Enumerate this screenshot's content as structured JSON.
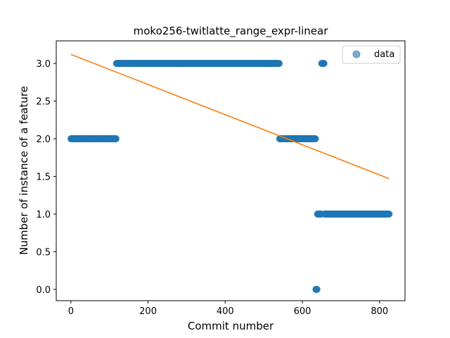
{
  "chart_data": {
    "type": "scatter",
    "title": "moko256-twitlatte_range_expr-linear",
    "xlabel": "Commit number",
    "ylabel": "Number of instance of a feature",
    "xlim": [
      -38,
      866
    ],
    "ylim": [
      -0.15,
      3.3
    ],
    "xticks": [
      0,
      200,
      400,
      600,
      800
    ],
    "yticks": [
      0.0,
      0.5,
      1.0,
      1.5,
      2.0,
      2.5,
      3.0
    ],
    "ytick_labels": [
      "0.0",
      "0.5",
      "1.0",
      "1.5",
      "2.0",
      "2.5",
      "3.0"
    ],
    "legend": {
      "position": "top-right",
      "entries": [
        "data"
      ]
    },
    "colors": {
      "data": "#1f77b4",
      "fit": "#ff7f0e"
    },
    "series": [
      {
        "name": "data",
        "kind": "scatter",
        "segments": [
          {
            "x_start": 0,
            "x_end": 117,
            "y": 2.0
          },
          {
            "x_start": 118,
            "x_end": 540,
            "y": 3.0
          },
          {
            "x_start": 541,
            "x_end": 634,
            "y": 2.0
          },
          {
            "x_start": 635,
            "x_end": 638,
            "y": 0.0
          },
          {
            "x_start": 639,
            "x_end": 649,
            "y": 1.0
          },
          {
            "x_start": 650,
            "x_end": 656,
            "y": 3.0
          },
          {
            "x_start": 657,
            "x_end": 825,
            "y": 1.0
          }
        ]
      },
      {
        "kind": "line",
        "x": [
          0,
          825
        ],
        "y": [
          3.12,
          1.47
        ]
      }
    ]
  }
}
